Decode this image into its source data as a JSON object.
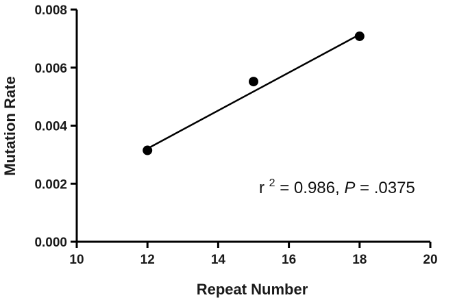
{
  "chart_data": {
    "type": "scatter",
    "title": "",
    "xlabel": "Repeat Number",
    "ylabel": "Mutation Rate",
    "xlim": [
      10,
      20
    ],
    "ylim": [
      0,
      0.008
    ],
    "x_ticks": [
      "10",
      "12",
      "14",
      "16",
      "18",
      "20"
    ],
    "y_ticks": [
      "0.000",
      "0.002",
      "0.004",
      "0.006",
      "0.008"
    ],
    "grid": false,
    "legend": "none",
    "series": [
      {
        "points": [
          {
            "x": 12,
            "y": 0.00315
          },
          {
            "x": 15,
            "y": 0.00552
          },
          {
            "x": 18,
            "y": 0.00708
          }
        ]
      }
    ],
    "trendline": {
      "x": [
        12,
        18
      ],
      "y": [
        0.00321,
        0.00714
      ]
    },
    "annotation": {
      "r_symbol": "r",
      "superscript": "2",
      "r_text": " = 0.986, ",
      "p_symbol": "P",
      "p_text": " = .0375"
    },
    "colors": {
      "points": "#000000",
      "axes": "#000000",
      "line": "#000000"
    }
  }
}
